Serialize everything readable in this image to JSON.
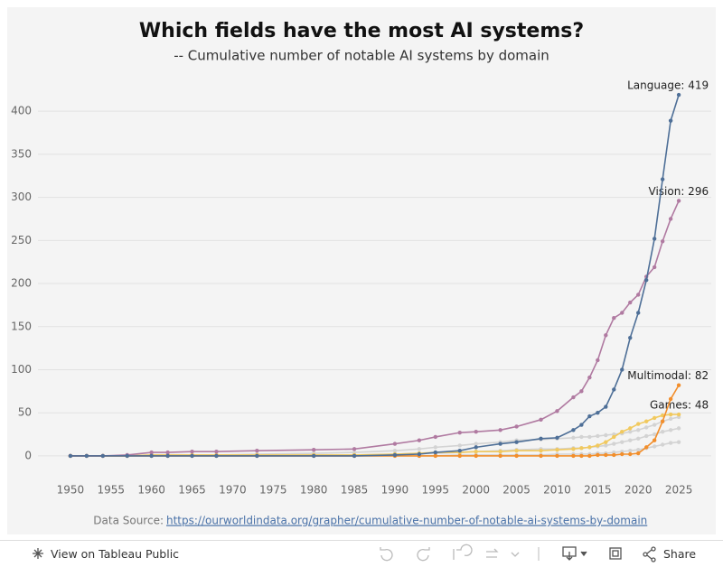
{
  "chart_data": {
    "type": "line",
    "title": "Which fields have the most AI systems?",
    "subtitle": "-- Cumulative number of notable AI systems by domain",
    "x": [
      1950,
      1952,
      1954,
      1957,
      1960,
      1962,
      1965,
      1968,
      1973,
      1980,
      1985,
      1990,
      1993,
      1995,
      1998,
      2000,
      2003,
      2005,
      2008,
      2010,
      2012,
      2013,
      2014,
      2015,
      2016,
      2017,
      2018,
      2019,
      2020,
      2021,
      2022,
      2023,
      2024,
      2025
    ],
    "xlim": [
      1946,
      2029
    ],
    "xticks": [
      1950,
      1955,
      1960,
      1965,
      1970,
      1975,
      1980,
      1985,
      1990,
      1995,
      2000,
      2005,
      2010,
      2015,
      2020,
      2025
    ],
    "ylim": [
      -20,
      440
    ],
    "yticks": [
      0,
      50,
      100,
      150,
      200,
      250,
      300,
      350,
      400
    ],
    "grid": true,
    "series": [
      {
        "color": "#d3d3d3",
        "values": [
          0,
          0,
          0,
          0,
          1,
          1,
          1,
          1,
          2,
          3,
          4,
          6,
          8,
          10,
          12,
          14,
          16,
          18,
          19,
          20,
          21,
          22,
          22,
          23,
          24,
          25,
          26,
          28,
          30,
          33,
          36,
          40,
          43,
          45
        ]
      },
      {
        "color": "#d3d3d3",
        "values": [
          0,
          0,
          0,
          0,
          0,
          0,
          0,
          0,
          0,
          1,
          1,
          2,
          3,
          3,
          4,
          5,
          6,
          7,
          8,
          8,
          9,
          9,
          10,
          11,
          12,
          14,
          16,
          18,
          20,
          23,
          25,
          28,
          30,
          32
        ]
      },
      {
        "color": "#d3d3d3",
        "values": [
          0,
          0,
          0,
          0,
          0,
          0,
          0,
          0,
          0,
          0,
          0,
          0,
          0,
          0,
          1,
          1,
          1,
          1,
          1,
          2,
          2,
          2,
          2,
          3,
          3,
          4,
          5,
          6,
          7,
          9,
          11,
          13,
          15,
          16
        ]
      },
      {
        "name": "Games",
        "label": "Games: 48",
        "color": "#f1c95e",
        "values": [
          0,
          0,
          0,
          0,
          1,
          1,
          1,
          1,
          1,
          1,
          1,
          2,
          3,
          4,
          4,
          5,
          5,
          6,
          6,
          7,
          8,
          9,
          10,
          12,
          16,
          22,
          28,
          32,
          37,
          40,
          44,
          47,
          48,
          48
        ]
      },
      {
        "name": "Multimodal",
        "label": "Multimodal: 82",
        "color": "#f28e2b",
        "values": [
          0,
          0,
          0,
          0,
          0,
          0,
          0,
          0,
          0,
          0,
          0,
          0,
          0,
          0,
          0,
          0,
          0,
          0,
          0,
          0,
          0,
          0,
          0,
          1,
          1,
          1,
          2,
          2,
          3,
          10,
          18,
          40,
          66,
          82
        ]
      },
      {
        "name": "Vision",
        "label": "Vision: 296",
        "color": "#b07aa1",
        "values": [
          0,
          0,
          0,
          1,
          4,
          4,
          5,
          5,
          6,
          7,
          8,
          14,
          18,
          22,
          27,
          28,
          30,
          34,
          42,
          52,
          68,
          75,
          91,
          111,
          140,
          160,
          166,
          178,
          187,
          208,
          219,
          249,
          275,
          296
        ]
      },
      {
        "name": "Language",
        "label": "Language: 419",
        "color": "#4e6f97",
        "values": [
          0,
          0,
          0,
          0,
          0,
          0,
          0,
          0,
          0,
          0,
          0,
          1,
          2,
          4,
          6,
          10,
          14,
          16,
          20,
          21,
          30,
          36,
          46,
          50,
          57,
          77,
          100,
          137,
          166,
          204,
          252,
          321,
          389,
          419
        ]
      }
    ]
  },
  "footer": {
    "source_label": "Data Source:",
    "source_url": "https://ourworldindata.org/grapher/cumulative-number-of-notable-ai-systems-by-domain"
  },
  "toolbar": {
    "view": "View on Tableau Public",
    "share": "Share"
  }
}
